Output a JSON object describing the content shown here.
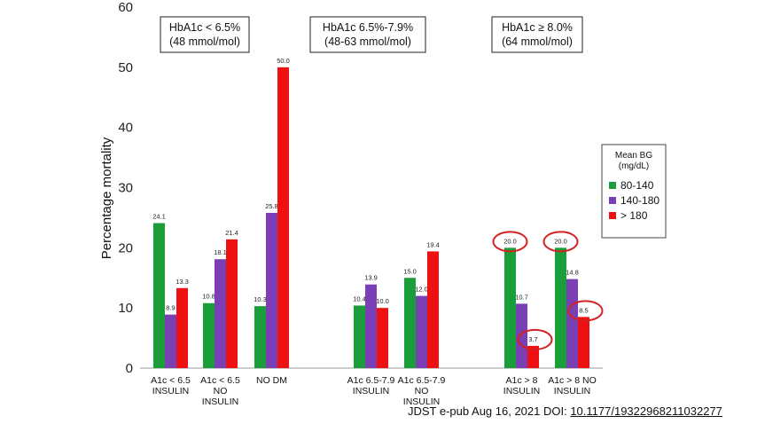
{
  "chart_data": {
    "type": "bar",
    "ylabel": "Percentage mortality",
    "ylim": [
      0,
      60
    ],
    "yticks": [
      0,
      10,
      20,
      30,
      40,
      50,
      60
    ],
    "legend": {
      "title_lines": [
        "Mean BG",
        "(mg/dL)"
      ],
      "placement": "right"
    },
    "series": [
      {
        "name": "80-140",
        "color": "#1a9e3a"
      },
      {
        "name": "140-180",
        "color": "#7b3fb5"
      },
      {
        "name": "> 180",
        "color": "#ee1111"
      }
    ],
    "groups": [
      {
        "lines": [
          "A1c < 6.5",
          "INSULIN"
        ],
        "values": [
          24.1,
          8.9,
          13.3
        ],
        "labels": [
          "24.1",
          "8.9",
          "13.3"
        ]
      },
      {
        "lines": [
          "A1c < 6.5",
          "NO",
          "INSULIN"
        ],
        "values": [
          10.8,
          18.1,
          21.4
        ],
        "labels": [
          "10.8",
          "18.1",
          "21.4"
        ]
      },
      {
        "lines": [
          "NO DM"
        ],
        "values": [
          10.3,
          25.8,
          50.0
        ],
        "labels": [
          "10.3",
          "25.8",
          "50.0"
        ]
      },
      {
        "lines": [
          "A1c 6.5-7.9",
          "INSULIN"
        ],
        "values": [
          10.4,
          13.9,
          10.0
        ],
        "labels": [
          "10.4",
          "13.9",
          "10.0"
        ]
      },
      {
        "lines": [
          "A1c 6.5-7.9",
          "NO",
          "INSULIN"
        ],
        "values": [
          15.0,
          12.0,
          19.4
        ],
        "labels": [
          "15.0",
          "12.0",
          "19.4"
        ]
      },
      {
        "lines": [
          "A1c > 8",
          "INSULIN"
        ],
        "values": [
          20.0,
          10.7,
          3.7
        ],
        "labels": [
          "20.0",
          "10.7",
          "3.7"
        ],
        "circled": [
          0,
          2
        ]
      },
      {
        "lines": [
          "A1c > 8 NO",
          "INSULIN"
        ],
        "values": [
          20.0,
          14.8,
          8.5
        ],
        "labels": [
          "20.0",
          "14.8",
          "8.5"
        ],
        "circled": [
          0,
          2
        ]
      }
    ],
    "annotations": [
      {
        "lines": [
          "HbA1c < 6.5%",
          "(48 mmol/mol)"
        ]
      },
      {
        "lines": [
          "HbA1c 6.5%-7.9%",
          "(48-63 mmol/mol)"
        ]
      },
      {
        "lines": [
          "HbA1c ≥ 8.0%",
          "(64 mmol/mol)"
        ]
      }
    ]
  },
  "citation": {
    "prefix": "JDST e-pub Aug 16,  2021 DOI: ",
    "doi": "10.1177/19322968211032277"
  }
}
